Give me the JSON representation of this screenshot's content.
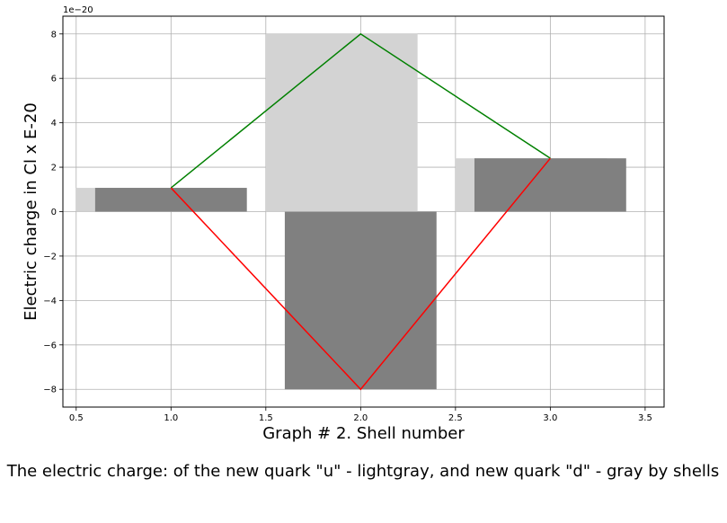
{
  "chart_data": {
    "type": "bar",
    "xlabel": "Graph # 2. Shell number",
    "ylabel": "Electric charge in Cl x E-20",
    "y_exponent_label": "1e−20",
    "caption": "The electric charge: of the new quark \"u\" - lightgray, and new quark \"d\" - gray by shells",
    "xlim": [
      0.43,
      3.6
    ],
    "ylim": [
      -8.8,
      8.8
    ],
    "grid": true,
    "x_ticks": [
      0.5,
      1.0,
      1.5,
      2.0,
      2.5,
      3.0,
      3.5
    ],
    "x_tick_labels": [
      "0.5",
      "1.0",
      "1.5",
      "2.0",
      "2.5",
      "3.0",
      "3.5"
    ],
    "y_ticks": [
      -8,
      -6,
      -4,
      -2,
      0,
      2,
      4,
      6,
      8
    ],
    "y_tick_labels": [
      "−8",
      "−6",
      "−4",
      "−2",
      "0",
      "2",
      "4",
      "6",
      "8"
    ],
    "bar_series": [
      {
        "color": "#d3d3d3",
        "x": [
          1,
          2,
          3
        ],
        "values": [
          1.07,
          8.0,
          2.4
        ],
        "offset": -0.1,
        "width": 0.8
      },
      {
        "color": "#808080",
        "x": [
          1,
          2,
          3
        ],
        "values": [
          1.07,
          -8.0,
          2.4
        ],
        "offset": 0.0,
        "width": 0.8
      }
    ],
    "line_series": [
      {
        "color": "#008000",
        "x": [
          1,
          2,
          3
        ],
        "values": [
          1.07,
          8.0,
          2.4
        ]
      },
      {
        "color": "#ff0000",
        "x": [
          1,
          2,
          3
        ],
        "values": [
          1.07,
          -8.0,
          2.4
        ]
      }
    ]
  }
}
